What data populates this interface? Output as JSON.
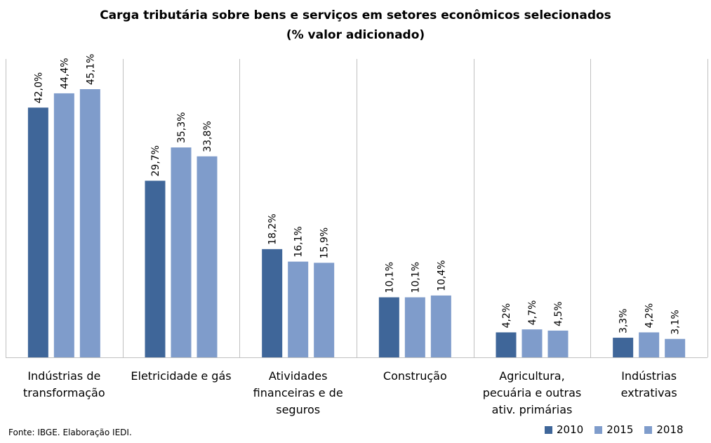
{
  "title_lines": [
    "Carga tributária sobre bens e serviços em setores econômicos selecionados",
    "(% valor adicionado)"
  ],
  "source": "Fonte: IBGE. Elaboração IEDI.",
  "colors": {
    "2010": "#3f6699",
    "2015": "#7f9ccb",
    "2018": "#7f9ccb",
    "divider": "#c0c0c0"
  },
  "chart_data": {
    "type": "bar",
    "title": "Carga tributária sobre bens e serviços em setores econômicos selecionados (% valor adicionado)",
    "categories": [
      [
        "Indústrias de",
        "transformação"
      ],
      [
        "Eletricidade e gás"
      ],
      [
        "Atividades",
        "financeiras e de",
        "seguros"
      ],
      [
        "Construção"
      ],
      [
        "Agricultura,",
        "pecuária e outras",
        "ativ. primárias"
      ],
      [
        "Indústrias",
        "extrativas"
      ]
    ],
    "series": [
      {
        "name": "2010",
        "values": [
          42.0,
          29.7,
          18.2,
          10.1,
          4.2,
          3.3
        ],
        "labels": [
          "42,0%",
          "29,7%",
          "18,2%",
          "10,1%",
          "4,2%",
          "3,3%"
        ]
      },
      {
        "name": "2015",
        "values": [
          44.4,
          35.3,
          16.1,
          10.1,
          4.7,
          4.2
        ],
        "labels": [
          "44,4%",
          "35,3%",
          "16,1%",
          "10,1%",
          "4,7%",
          "4,2%"
        ]
      },
      {
        "name": "2018",
        "values": [
          45.1,
          33.8,
          15.9,
          10.4,
          4.5,
          3.1
        ],
        "labels": [
          "45,1%",
          "33,8%",
          "15,9%",
          "10,4%",
          "4,5%",
          "3,1%"
        ]
      }
    ],
    "ylim": [
      0,
      50
    ],
    "legend": "bottom-right",
    "grid": false
  }
}
